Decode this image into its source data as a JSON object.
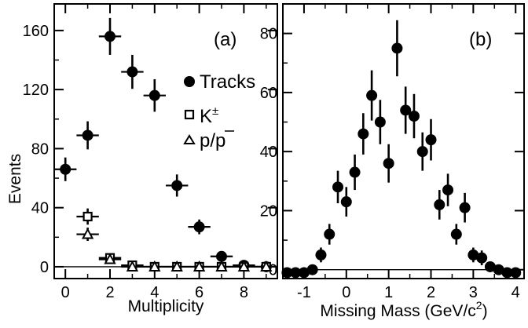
{
  "chart_data": [
    {
      "type": "scatter",
      "panel_label": "(a)",
      "xlabel": "Multiplicity",
      "ylabel": "Events",
      "xlim": [
        -0.5,
        9.5
      ],
      "ylim": [
        -8,
        178
      ],
      "x_ticks": [
        0,
        2,
        4,
        6,
        8
      ],
      "y_ticks": [
        0,
        40,
        80,
        120,
        160
      ],
      "legend_position": "right",
      "series": [
        {
          "name": "Tracks",
          "marker": "filled-circle",
          "x": [
            0,
            1,
            2,
            3,
            4,
            5,
            6,
            7,
            8,
            9
          ],
          "y": [
            66,
            89,
            156,
            132,
            116,
            55,
            27,
            7,
            1,
            0
          ],
          "yerr": [
            8,
            9.5,
            12.5,
            11.5,
            11,
            7.5,
            5,
            3,
            1,
            0.5
          ]
        },
        {
          "name": "K±",
          "marker": "open-square",
          "x": [
            1,
            2,
            3,
            4,
            5,
            6,
            7,
            8,
            9
          ],
          "y": [
            34,
            6,
            1,
            0,
            0,
            0,
            0,
            0,
            0
          ],
          "yerr": [
            5.5,
            2.5,
            1,
            0.5,
            0.5,
            0.5,
            0.5,
            0.5,
            0.5
          ]
        },
        {
          "name": "p/p̄",
          "marker": "open-triangle",
          "x": [
            1,
            2,
            3,
            4,
            5,
            6,
            7,
            8,
            9
          ],
          "y": [
            22,
            5,
            0,
            0,
            0,
            0,
            0,
            0,
            0
          ],
          "yerr": [
            4.5,
            2,
            0.5,
            0.5,
            0.5,
            0.5,
            0.5,
            0.5,
            0.5
          ]
        }
      ]
    },
    {
      "type": "scatter",
      "panel_label": "(b)",
      "xlabel": "Missing Mass  (GeV/c",
      "xlabel_sup": "2",
      "xlabel_end": ")",
      "xlim": [
        -1.5,
        4.2
      ],
      "ylim": [
        -3,
        90
      ],
      "x_ticks": [
        -1,
        0,
        1,
        2,
        3,
        4
      ],
      "y_ticks": [
        0,
        20,
        40,
        60,
        80
      ],
      "series": [
        {
          "marker": "filled-circle",
          "x": [
            -1.4,
            -1.2,
            -1.0,
            -0.8,
            -0.6,
            -0.4,
            -0.2,
            0.0,
            0.2,
            0.4,
            0.6,
            0.8,
            1.0,
            1.2,
            1.4,
            1.6,
            1.8,
            2.0,
            2.2,
            2.4,
            2.6,
            2.8,
            3.0,
            3.2,
            3.4,
            3.6,
            3.8,
            4.0
          ],
          "y": [
            -1,
            -1,
            -1,
            0,
            5,
            12,
            28,
            23,
            33,
            46,
            59,
            50,
            36,
            75,
            54,
            52,
            40,
            44,
            22,
            27,
            12,
            21,
            5,
            4,
            1,
            0,
            -1,
            -1
          ],
          "yerr": [
            1,
            1,
            1,
            1,
            2.5,
            3.5,
            5.5,
            5,
            6,
            7,
            8.5,
            7.5,
            6.5,
            9.5,
            8,
            7.5,
            6.5,
            7,
            5,
            5.5,
            3.5,
            5,
            2.5,
            2.5,
            1.5,
            1,
            1,
            1
          ]
        }
      ]
    }
  ]
}
